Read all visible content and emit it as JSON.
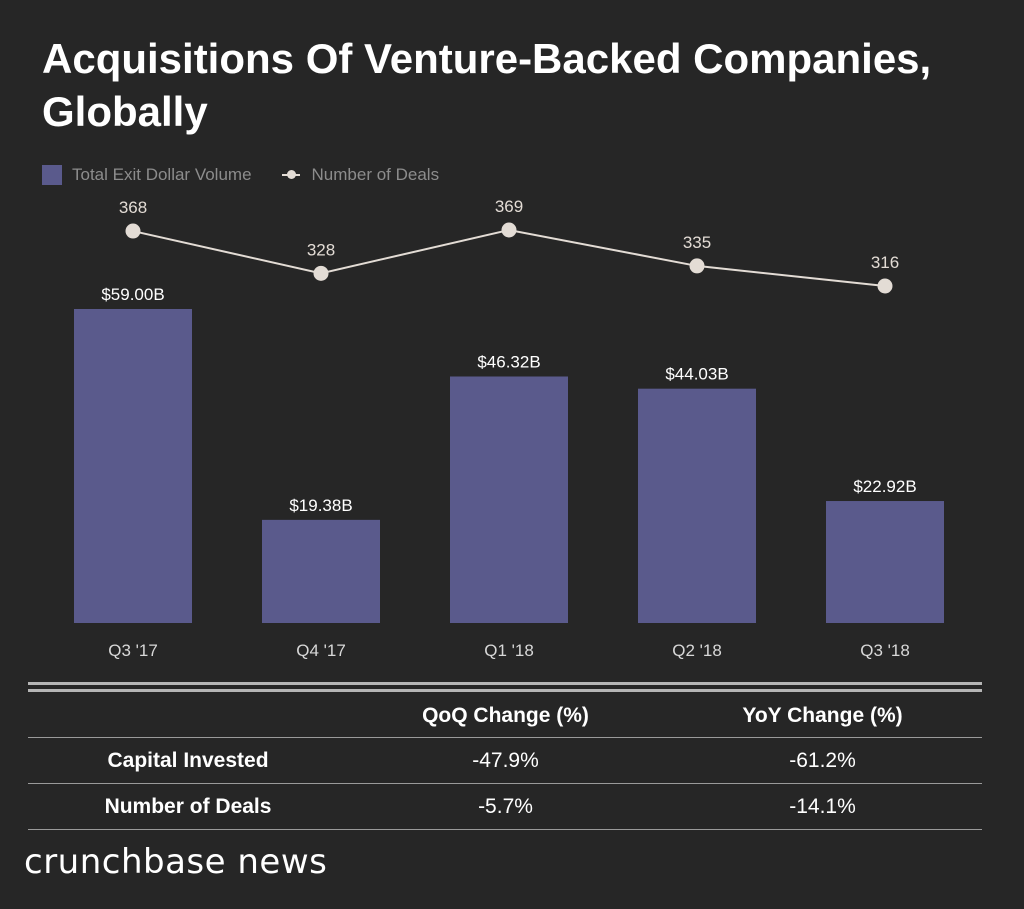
{
  "title": "Acquisitions Of Venture-Backed Companies, Globally",
  "legend": {
    "bar_series": "Total Exit Dollar Volume",
    "line_series": "Number of Deals"
  },
  "colors": {
    "background": "#262626",
    "bar": "#5a5a8c",
    "line": "#e3dcd5"
  },
  "chart_data": {
    "type": "bar",
    "title": "Acquisitions Of Venture-Backed Companies, Globally",
    "categories": [
      "Q3 '17",
      "Q4 '17",
      "Q1 '18",
      "Q2 '18",
      "Q3 '18"
    ],
    "series": [
      {
        "name": "Total Exit Dollar Volume",
        "type": "bar",
        "values": [
          59.0,
          19.38,
          46.32,
          44.03,
          22.92
        ],
        "labels": [
          "$59.00B",
          "$19.38B",
          "$46.32B",
          "$44.03B",
          "$22.92B"
        ],
        "unit": "USD billions"
      },
      {
        "name": "Number of Deals",
        "type": "line",
        "values": [
          368,
          328,
          369,
          335,
          316
        ],
        "labels": [
          "368",
          "328",
          "369",
          "335",
          "316"
        ]
      }
    ],
    "xlabel": "",
    "ylabel": "",
    "ylim": [
      0,
      59.0
    ],
    "line_ylim": [
      270,
      369
    ],
    "grid": false,
    "legend_position": "top-left"
  },
  "table": {
    "headers": [
      "",
      "QoQ Change (%)",
      "YoY Change (%)"
    ],
    "rows": [
      {
        "label": "Capital Invested",
        "qoq": "-47.9%",
        "yoy": "-61.2%"
      },
      {
        "label": "Number of Deals",
        "qoq": "-5.7%",
        "yoy": "-14.1%"
      }
    ]
  },
  "brand": "crunchbase news"
}
